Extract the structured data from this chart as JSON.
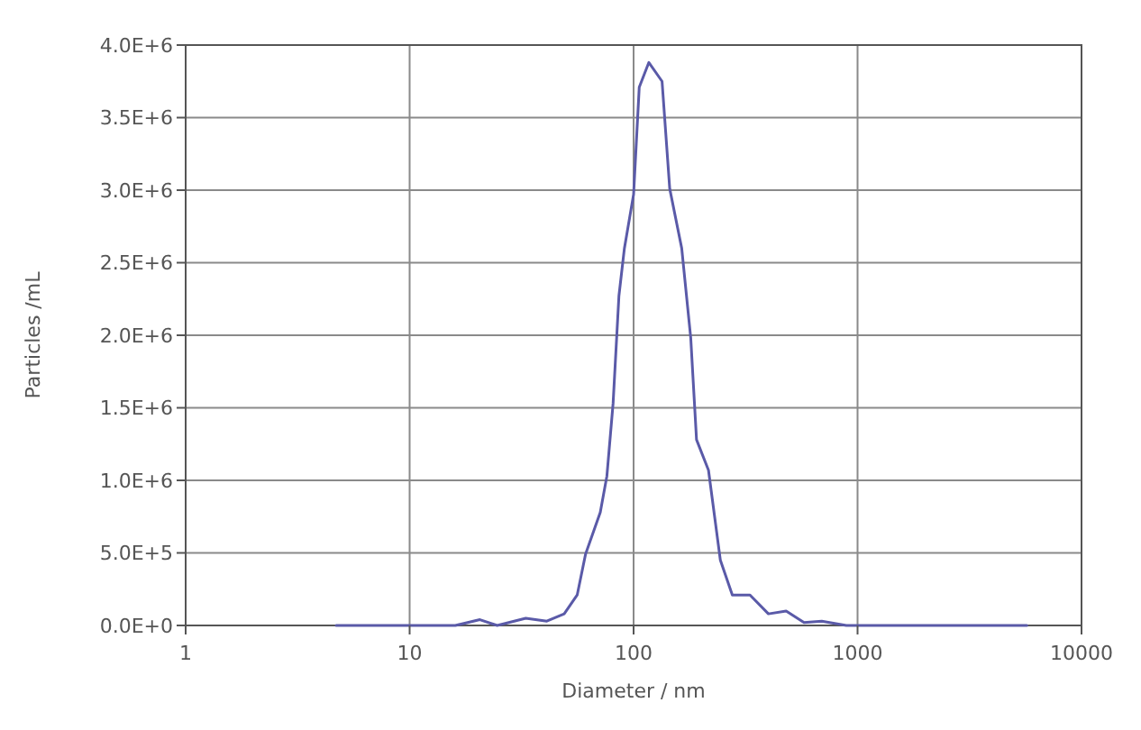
{
  "chart_data": {
    "type": "line",
    "xlabel": "Diameter / nm",
    "ylabel": "Particles /mL",
    "log": "x",
    "grid": true,
    "marker": "none",
    "line_style": "solid",
    "xlim": [
      1,
      10000
    ],
    "xticks": [
      1,
      10,
      100,
      1000,
      10000
    ],
    "ylim": [
      0,
      4000000
    ],
    "yticks": [
      {
        "value": 0,
        "label": "0.0E+0"
      },
      {
        "value": 500000,
        "label": "5.0E+5"
      },
      {
        "value": 1000000,
        "label": "1.0E+6"
      },
      {
        "value": 1500000,
        "label": "1.5E+6"
      },
      {
        "value": 2000000,
        "label": "2.0E+6"
      },
      {
        "value": 2500000,
        "label": "2.5E+6"
      },
      {
        "value": 3000000,
        "label": "3.0E+6"
      },
      {
        "value": 3500000,
        "label": "3.5E+6"
      },
      {
        "value": 4000000,
        "label": "4.0E+6"
      }
    ],
    "series": [
      {
        "color": "#5a5aa8",
        "x": [
          4.7,
          10,
          16,
          20.6,
          24.6,
          33,
          41,
          49,
          56,
          61,
          71,
          76,
          81,
          86,
          91,
          100,
          106,
          117,
          134,
          145,
          164,
          180,
          191,
          216,
          244,
          276,
          331,
          400,
          480,
          577,
          692,
          891,
          2000,
          5700
        ],
        "values": [
          0,
          0,
          0,
          40000,
          0,
          50000,
          30000,
          80000,
          210000,
          490000,
          780000,
          1030000,
          1530000,
          2270000,
          2600000,
          2970000,
          3710000,
          3880000,
          3750000,
          3010000,
          2600000,
          1980000,
          1280000,
          1070000,
          450000,
          210000,
          210000,
          80000,
          100000,
          20000,
          30000,
          0,
          0,
          0
        ]
      }
    ]
  }
}
